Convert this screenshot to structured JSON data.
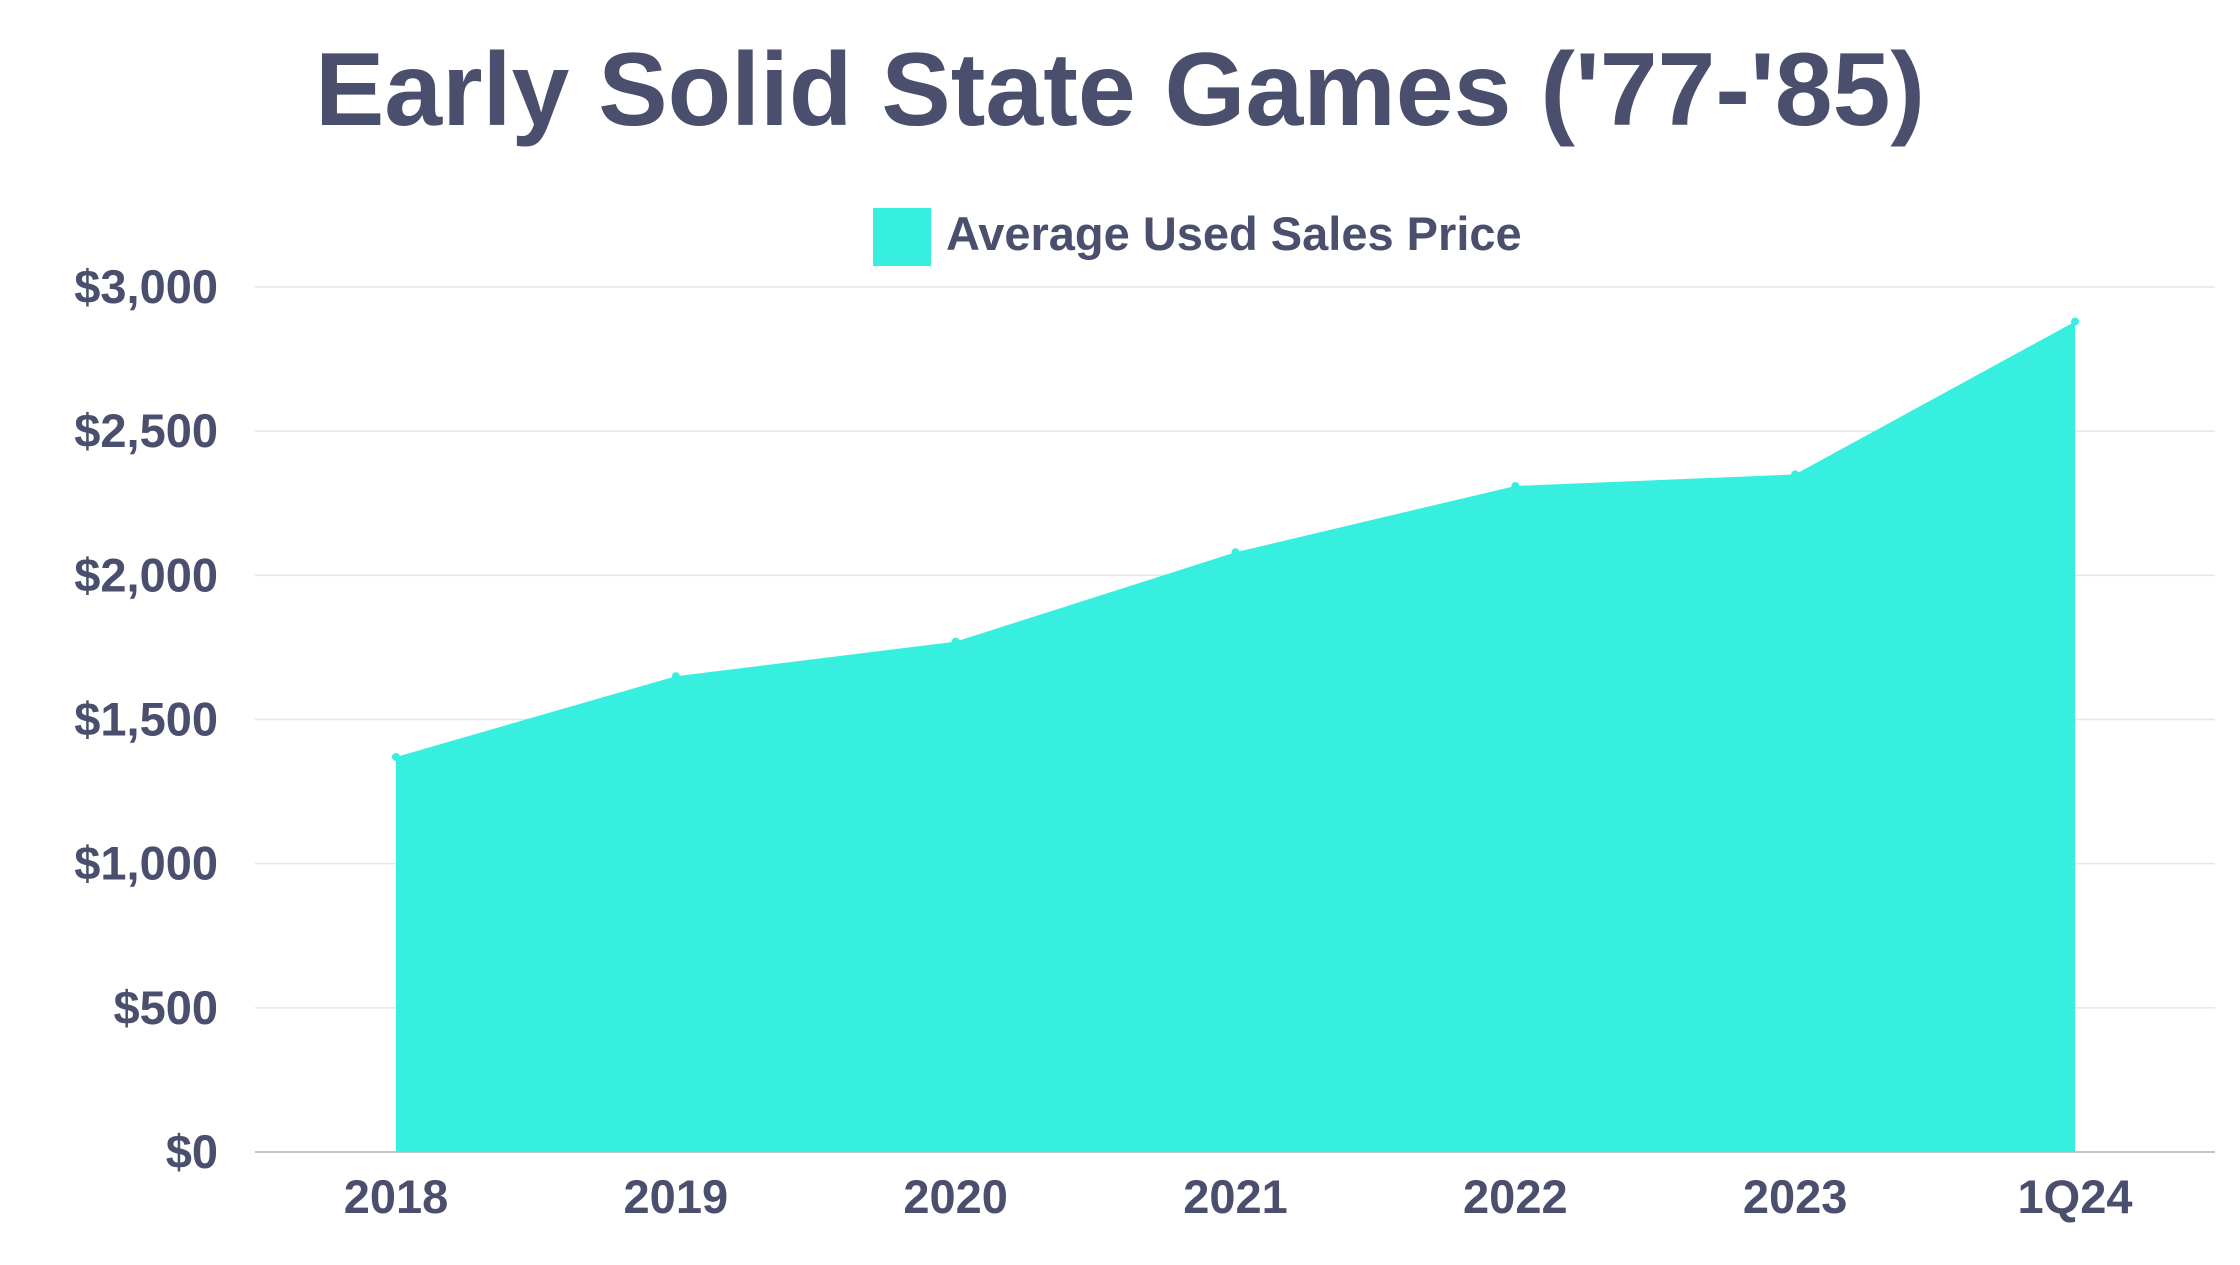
{
  "chart_data": {
    "type": "area",
    "title": "Early Solid State Games ('77-'85)",
    "legend": {
      "position": "top-center",
      "entries": [
        "Average Used Sales Price"
      ]
    },
    "categories": [
      "2018",
      "2019",
      "2020",
      "2021",
      "2022",
      "2023",
      "1Q24"
    ],
    "series": [
      {
        "name": "Average Used Sales Price",
        "values": [
          1370,
          1650,
          1770,
          2080,
          2310,
          2350,
          2880
        ],
        "color": "#36efdf"
      }
    ],
    "yticks": [
      0,
      500,
      1000,
      1500,
      2000,
      2500,
      3000
    ],
    "ytick_labels": [
      "$0",
      "$500",
      "$1,000",
      "$1,500",
      "$2,000",
      "$2,500",
      "$3,000"
    ],
    "ylim": [
      0,
      3000
    ],
    "xlabel": "",
    "ylabel": "",
    "grid": true
  },
  "colors": {
    "text": "#4a4f6e",
    "gridline": "#e6e6ea",
    "axis": "#c4c4cc",
    "area": "#36efdf"
  }
}
